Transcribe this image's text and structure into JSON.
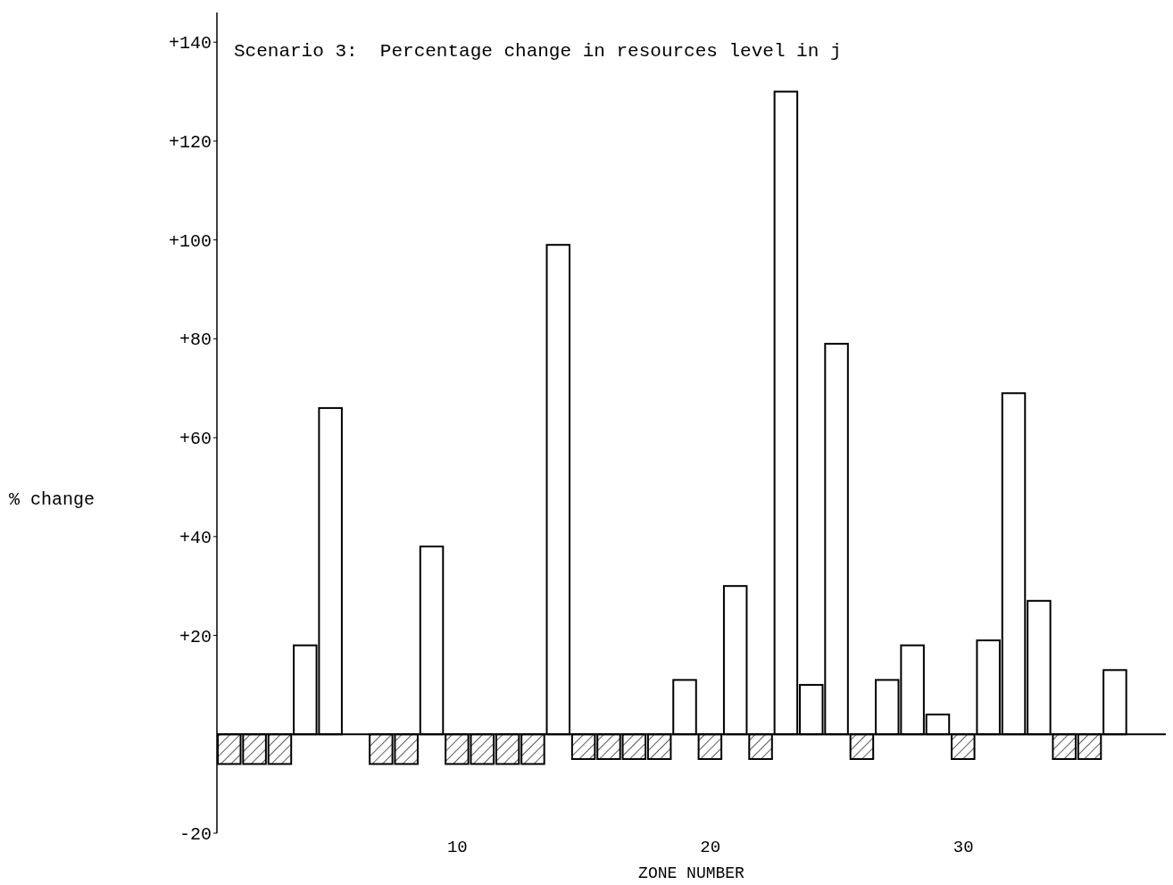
{
  "chart_data": {
    "type": "bar",
    "title": "Scenario 3:  Percentage change in resources level in j",
    "xlabel": "ZONE NUMBER",
    "ylabel": "% change",
    "x": [
      1,
      2,
      3,
      4,
      5,
      6,
      7,
      8,
      9,
      10,
      11,
      12,
      13,
      14,
      15,
      16,
      17,
      18,
      19,
      20,
      21,
      22,
      23,
      24,
      25,
      26,
      27,
      28,
      29,
      30,
      31,
      32,
      33,
      34,
      35,
      36
    ],
    "values": [
      -6,
      -6,
      -6,
      18,
      66,
      null,
      -6,
      -6,
      38,
      -6,
      -6,
      -6,
      -6,
      99,
      -5,
      -5,
      -5,
      -5,
      11,
      -5,
      30,
      -5,
      130,
      10,
      79,
      -5,
      11,
      18,
      4,
      -5,
      19,
      69,
      27,
      -5,
      -5,
      13
    ],
    "color": "#ffffff",
    "xlim": [
      0.5,
      38
    ],
    "xticks": [
      10,
      20,
      30
    ],
    "ylim": [
      -20,
      146
    ],
    "yticks": [
      -20,
      {
        "value": 20,
        "label": "+20"
      },
      {
        "value": 40,
        "label": "+40"
      },
      {
        "value": 60,
        "label": "+60"
      },
      {
        "value": 80,
        "label": "+80"
      },
      {
        "value": 100,
        "label": "+100"
      },
      {
        "value": 120,
        "label": "+120"
      },
      {
        "value": 140,
        "label": "+140"
      }
    ],
    "ref_lines": [
      {
        "axis": "y",
        "value": 0,
        "color": "#000000"
      }
    ],
    "grid": false,
    "legend": false
  }
}
